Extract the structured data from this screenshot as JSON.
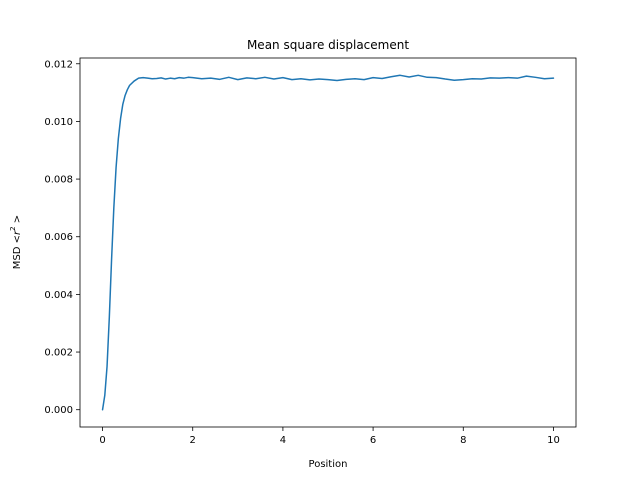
{
  "chart_data": {
    "type": "line",
    "title": "Mean square displacement",
    "xlabel": "Position",
    "ylabel": {
      "prefix": "MSD  <",
      "var": "r",
      "sup": "2",
      "suffix": " >"
    },
    "xlim": [
      -0.5,
      10.5
    ],
    "ylim": [
      -0.0006,
      0.0122
    ],
    "xticks": [
      0,
      2,
      4,
      6,
      8,
      10
    ],
    "xtick_labels": [
      "0",
      "2",
      "4",
      "6",
      "8",
      "10"
    ],
    "yticks": [
      0.0,
      0.002,
      0.004,
      0.006,
      0.008,
      0.01,
      0.012
    ],
    "ytick_labels": [
      "0.000",
      "0.002",
      "0.004",
      "0.006",
      "0.008",
      "0.010",
      "0.012"
    ],
    "grid": false,
    "series": [
      {
        "color": "#1f77b4",
        "x": [
          0,
          0.05,
          0.1,
          0.15,
          0.2,
          0.25,
          0.3,
          0.35,
          0.4,
          0.45,
          0.5,
          0.55,
          0.6,
          0.7,
          0.8,
          0.9,
          1.0,
          1.1,
          1.2,
          1.3,
          1.4,
          1.5,
          1.6,
          1.7,
          1.8,
          1.9,
          2.0,
          2.2,
          2.4,
          2.6,
          2.8,
          3.0,
          3.2,
          3.4,
          3.6,
          3.8,
          4.0,
          4.2,
          4.4,
          4.6,
          4.8,
          5.0,
          5.2,
          5.4,
          5.6,
          5.8,
          6.0,
          6.2,
          6.4,
          6.6,
          6.8,
          7.0,
          7.2,
          7.4,
          7.6,
          7.8,
          8.0,
          8.2,
          8.4,
          8.6,
          8.8,
          9.0,
          9.2,
          9.4,
          9.6,
          9.8,
          10.0
        ],
        "y": [
          0.0,
          0.0005,
          0.0015,
          0.0032,
          0.0052,
          0.007,
          0.0084,
          0.0094,
          0.0101,
          0.0106,
          0.0109,
          0.0111,
          0.01125,
          0.0114,
          0.0115,
          0.01152,
          0.0115,
          0.01148,
          0.01149,
          0.01151,
          0.01147,
          0.0115,
          0.01148,
          0.01152,
          0.0115,
          0.01153,
          0.01152,
          0.01148,
          0.0115,
          0.01146,
          0.01153,
          0.01145,
          0.01151,
          0.01148,
          0.01153,
          0.01147,
          0.01152,
          0.01145,
          0.01148,
          0.01144,
          0.01147,
          0.01145,
          0.01142,
          0.01146,
          0.01148,
          0.01145,
          0.01152,
          0.01149,
          0.01155,
          0.0116,
          0.01154,
          0.0116,
          0.01153,
          0.01152,
          0.01147,
          0.01143,
          0.01145,
          0.01148,
          0.01147,
          0.01151,
          0.0115,
          0.01152,
          0.0115,
          0.01157,
          0.01153,
          0.01148,
          0.0115
        ]
      }
    ]
  }
}
